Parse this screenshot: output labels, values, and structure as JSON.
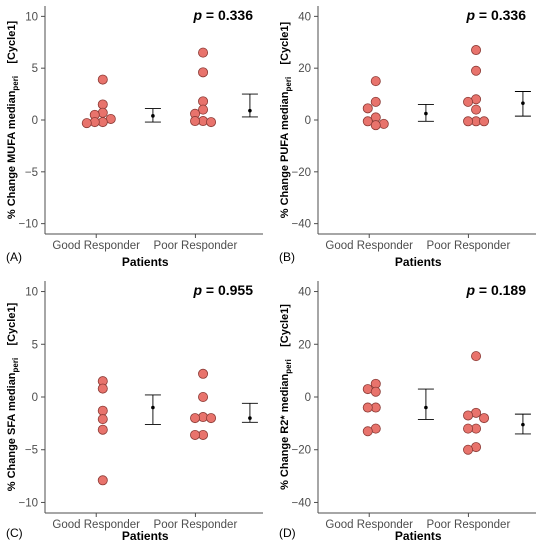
{
  "chart_data": [
    {
      "type": "scatter",
      "panel_label": "(A)",
      "ylabel": "% Change MUFA median",
      "ylabel_sub": "peri",
      "ylabel_suffix": "[Cycle1]",
      "xlabel": "Patients",
      "p_value": "0.336",
      "ylim": [
        -11,
        11
      ],
      "yticks": [
        -10,
        -5,
        0,
        5,
        10
      ],
      "yticks_labels": [
        "−10",
        "−5",
        "0",
        "5",
        "10"
      ],
      "categories": [
        "Good Responder",
        "Poor Responder"
      ],
      "points": [
        {
          "group": "Good Responder",
          "values": [
            3.9,
            1.5,
            0.7,
            0.5,
            0.1,
            -0.2,
            -0.2,
            -0.3
          ]
        },
        {
          "group": "Poor Responder",
          "values": [
            6.5,
            4.6,
            1.8,
            1.0,
            0.6,
            -0.1,
            -0.1,
            -0.2
          ]
        }
      ],
      "summary": [
        {
          "group": "Good Responder",
          "mean": 0.4,
          "lower": -0.2,
          "upper": 1.1
        },
        {
          "group": "Poor Responder",
          "mean": 0.9,
          "lower": 0.3,
          "upper": 2.5
        }
      ]
    },
    {
      "type": "scatter",
      "panel_label": "(B)",
      "ylabel": "% Change PUFA median",
      "ylabel_sub": "peri",
      "ylabel_suffix": "[Cycle1]",
      "xlabel": "Patients",
      "p_value": "0.336",
      "ylim": [
        -44,
        44
      ],
      "yticks": [
        -40,
        -20,
        0,
        20,
        40
      ],
      "yticks_labels": [
        "−40",
        "−20",
        "0",
        "20",
        "40"
      ],
      "categories": [
        "Good Responder",
        "Poor Responder"
      ],
      "points": [
        {
          "group": "Good Responder",
          "values": [
            15,
            7,
            4.5,
            1,
            -0.5,
            -1.5,
            -2
          ]
        },
        {
          "group": "Poor Responder",
          "values": [
            27,
            19,
            8,
            7,
            4,
            -0.5,
            -0.5,
            -0.5
          ]
        }
      ],
      "summary": [
        {
          "group": "Good Responder",
          "mean": 2.5,
          "lower": -0.5,
          "upper": 6
        },
        {
          "group": "Poor Responder",
          "mean": 6.5,
          "lower": 1.5,
          "upper": 11
        }
      ]
    },
    {
      "type": "scatter",
      "panel_label": "(C)",
      "ylabel": "% Change SFA median",
      "ylabel_sub": "peri",
      "ylabel_suffix": "[Cycle1]",
      "xlabel": "Patients",
      "p_value": "0.955",
      "ylim": [
        -11,
        11
      ],
      "yticks": [
        -10,
        -5,
        0,
        5,
        10
      ],
      "yticks_labels": [
        "−10",
        "−5",
        "0",
        "5",
        "10"
      ],
      "categories": [
        "Good Responder",
        "Poor Responder"
      ],
      "points": [
        {
          "group": "Good Responder",
          "values": [
            1.5,
            0.8,
            -1.3,
            -2.1,
            -3.1,
            -7.9
          ]
        },
        {
          "group": "Poor Responder",
          "values": [
            2.2,
            0.0,
            -1.9,
            -2.0,
            -2.0,
            -3.6,
            -3.6
          ]
        }
      ],
      "summary": [
        {
          "group": "Good Responder",
          "mean": -1.0,
          "lower": -2.6,
          "upper": 0.2
        },
        {
          "group": "Poor Responder",
          "mean": -2.0,
          "lower": -2.4,
          "upper": -0.6
        }
      ]
    },
    {
      "type": "scatter",
      "panel_label": "(D)",
      "ylabel": "% Change R2* median",
      "ylabel_sub": "peri",
      "ylabel_suffix": "[Cycle1]",
      "xlabel": "Patients",
      "p_value": "0.189",
      "ylim": [
        -44,
        44
      ],
      "yticks": [
        -40,
        -20,
        0,
        20,
        40
      ],
      "yticks_labels": [
        "−40",
        "−20",
        "0",
        "20",
        "40"
      ],
      "categories": [
        "Good Responder",
        "Poor Responder"
      ],
      "points": [
        {
          "group": "Good Responder",
          "values": [
            5,
            3,
            2,
            -4,
            -4,
            -12,
            -13
          ]
        },
        {
          "group": "Poor Responder",
          "values": [
            15.5,
            -6,
            -7,
            -8,
            -12,
            -12,
            -19,
            -20
          ]
        }
      ],
      "summary": [
        {
          "group": "Good Responder",
          "mean": -4,
          "lower": -8.5,
          "upper": 3
        },
        {
          "group": "Poor Responder",
          "mean": -10.5,
          "lower": -14,
          "upper": -6.5
        }
      ]
    }
  ],
  "colors": {
    "point_fill": "#e8736c",
    "point_stroke": "#8b3a35",
    "axis": "#4d4d4d",
    "summary": "#000000"
  }
}
